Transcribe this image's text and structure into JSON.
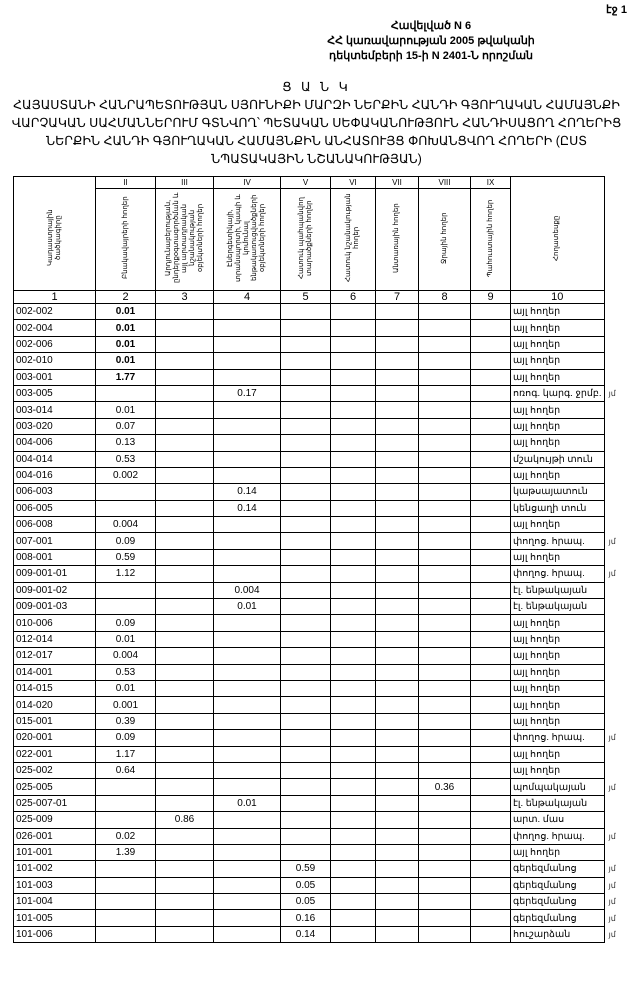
{
  "page_label": "էջ 1",
  "annex": [
    "Հավելված N 6",
    "ՀՀ կառավարության 2005 թվականի",
    "դեկտեմբերի 15-ի N 2401-Ն որոշման"
  ],
  "title_heading": "Ց Ա Ն Կ",
  "title_text": "ՀԱՅԱՍՏԱՆԻ ՀԱՆՐԱՊԵՏՈՒԹՅԱՆ ՍՅՈՒՆԻՔԻ ՄԱՐԶԻ ՆԵՐՔԻՆ ՀԱՆԴԻ ԳՅՈՒՂԱԿԱՆ ՀԱՄԱՅՆՔԻ ՎԱՐՉԱԿԱՆ ՍԱՀՄԱՆՆԵՐՈՒՄ ԳՏՆՎՈՂ՝ ՊԵՏԱԿԱՆ ՍԵՓԱԿԱՆՈՒԹՅՈՒՆ ՀԱՆԴԻՍԱՑՈՂ ՀՈՂԵՐԻՑ ՆԵՐՔԻՆ ՀԱՆԴԻ ԳՅՈՒՂԱԿԱՆ ՀԱՄԱՅՆՔԻՆ ԱՆՀԱՏՈՒՅՑ ՓՈԽԱՆՑՎՈՂ ՀՈՂԵՐԻ (ԸՍՏ ՆՊԱՏԱԿԱՅԻՆ ՆՇԱՆԱԿՈՒԹՅԱՆ)",
  "table": {
    "roman": [
      "",
      "II",
      "III",
      "IV",
      "V",
      "VI",
      "VII",
      "VIII",
      "IX",
      ""
    ],
    "headers": [
      "Կադաստրային ծածկագիրը",
      "Բնակավայրերի հողեր",
      "Արդյունաբերության, ընդերքօգտագործման և այլ արտադրական նշանակության օբյեկտների հողեր",
      "Էներգետիկայի, տրանսպորտի, կապի և կոմունալ ենթակառուցվածքների օբյեկտների հողեր",
      "Հատուկ պահպանվող տարածքների հողեր",
      "Հատուկ նշանակության հողեր",
      "Անտառային հողեր",
      "Ջրային հողեր",
      "Պահուստային հողեր",
      "Հողատեսքը"
    ],
    "index": [
      "1",
      "2",
      "3",
      "4",
      "5",
      "6",
      "7",
      "8",
      "9",
      "10"
    ],
    "rows": [
      [
        "002-002",
        "0.01",
        "",
        "",
        "",
        "",
        "",
        "",
        "",
        "այլ հողեր",
        ""
      ],
      [
        "002-004",
        "0.01",
        "",
        "",
        "",
        "",
        "",
        "",
        "",
        "այլ հողեր",
        ""
      ],
      [
        "002-006",
        "0.01",
        "",
        "",
        "",
        "",
        "",
        "",
        "",
        "այլ հողեր",
        ""
      ],
      [
        "002-010",
        "0.01",
        "",
        "",
        "",
        "",
        "",
        "",
        "",
        "այլ հողեր",
        ""
      ],
      [
        "003-001",
        "1.77",
        "",
        "",
        "",
        "",
        "",
        "",
        "",
        "այլ հողեր",
        ""
      ],
      [
        "003-005",
        "",
        "",
        "0.17",
        "",
        "",
        "",
        "",
        "",
        "ոռոգ. կարգ. ջրմբ.",
        "յմ"
      ],
      [
        "003-014",
        "0.01",
        "",
        "",
        "",
        "",
        "",
        "",
        "",
        "այլ հողեր",
        ""
      ],
      [
        "003-020",
        "0.07",
        "",
        "",
        "",
        "",
        "",
        "",
        "",
        "այլ հողեր",
        ""
      ],
      [
        "004-006",
        "0.13",
        "",
        "",
        "",
        "",
        "",
        "",
        "",
        "այլ հողեր",
        ""
      ],
      [
        "004-014",
        "0.53",
        "",
        "",
        "",
        "",
        "",
        "",
        "",
        "մշակույթի տուն",
        ""
      ],
      [
        "004-016",
        "0.002",
        "",
        "",
        "",
        "",
        "",
        "",
        "",
        "այլ հողեր",
        ""
      ],
      [
        "006-003",
        "",
        "",
        "0.14",
        "",
        "",
        "",
        "",
        "",
        "կաթսայատուն",
        ""
      ],
      [
        "006-005",
        "",
        "",
        "0.14",
        "",
        "",
        "",
        "",
        "",
        "կենցաղի տուն",
        ""
      ],
      [
        "006-008",
        "0.004",
        "",
        "",
        "",
        "",
        "",
        "",
        "",
        "այլ հողեր",
        ""
      ],
      [
        "007-001",
        "0.09",
        "",
        "",
        "",
        "",
        "",
        "",
        "",
        "փողոց. հրապ.",
        "յմ"
      ],
      [
        "008-001",
        "0.59",
        "",
        "",
        "",
        "",
        "",
        "",
        "",
        "այլ հողեր",
        ""
      ],
      [
        "009-001-01",
        "1.12",
        "",
        "",
        "",
        "",
        "",
        "",
        "",
        "փողոց. հրապ.",
        "յմ"
      ],
      [
        "009-001-02",
        "",
        "",
        "0.004",
        "",
        "",
        "",
        "",
        "",
        "էլ. ենթակայան",
        ""
      ],
      [
        "009-001-03",
        "",
        "",
        "0.01",
        "",
        "",
        "",
        "",
        "",
        "էլ. ենթակայան",
        ""
      ],
      [
        "010-006",
        "0.09",
        "",
        "",
        "",
        "",
        "",
        "",
        "",
        "այլ հողեր",
        ""
      ],
      [
        "012-014",
        "0.01",
        "",
        "",
        "",
        "",
        "",
        "",
        "",
        "այլ հողեր",
        ""
      ],
      [
        "012-017",
        "0.004",
        "",
        "",
        "",
        "",
        "",
        "",
        "",
        "այլ հողեր",
        ""
      ],
      [
        "014-001",
        "0.53",
        "",
        "",
        "",
        "",
        "",
        "",
        "",
        "այլ հողեր",
        ""
      ],
      [
        "014-015",
        "0.01",
        "",
        "",
        "",
        "",
        "",
        "",
        "",
        "այլ հողեր",
        ""
      ],
      [
        "014-020",
        "0.001",
        "",
        "",
        "",
        "",
        "",
        "",
        "",
        "այլ հողեր",
        ""
      ],
      [
        "015-001",
        "0.39",
        "",
        "",
        "",
        "",
        "",
        "",
        "",
        "այլ հողեր",
        ""
      ],
      [
        "020-001",
        "0.09",
        "",
        "",
        "",
        "",
        "",
        "",
        "",
        "փողոց. հրապ.",
        "յմ"
      ],
      [
        "022-001",
        "1.17",
        "",
        "",
        "",
        "",
        "",
        "",
        "",
        "այլ հողեր",
        ""
      ],
      [
        "025-002",
        "0.64",
        "",
        "",
        "",
        "",
        "",
        "",
        "",
        "այլ հողեր",
        ""
      ],
      [
        "025-005",
        "",
        "",
        "",
        "",
        "",
        "",
        "0.36",
        "",
        "պոմպակայան",
        "յմ"
      ],
      [
        "025-007-01",
        "",
        "",
        "0.01",
        "",
        "",
        "",
        "",
        "",
        "էլ. ենթակայան",
        ""
      ],
      [
        "025-009",
        "",
        "0.86",
        "",
        "",
        "",
        "",
        "",
        "",
        "արտ. մաս",
        ""
      ],
      [
        "026-001",
        "0.02",
        "",
        "",
        "",
        "",
        "",
        "",
        "",
        "փողոց. հրապ.",
        "յմ"
      ],
      [
        "101-001",
        "1.39",
        "",
        "",
        "",
        "",
        "",
        "",
        "",
        "այլ հողեր",
        ""
      ],
      [
        "101-002",
        "",
        "",
        "",
        "0.59",
        "",
        "",
        "",
        "",
        "գերեզմանոց",
        "յմ"
      ],
      [
        "101-003",
        "",
        "",
        "",
        "0.05",
        "",
        "",
        "",
        "",
        "գերեզմանոց",
        "յմ"
      ],
      [
        "101-004",
        "",
        "",
        "",
        "0.05",
        "",
        "",
        "",
        "",
        "գերեզմանոց",
        "յմ"
      ],
      [
        "101-005",
        "",
        "",
        "",
        "0.16",
        "",
        "",
        "",
        "",
        "գերեզմանոց",
        "յմ"
      ],
      [
        "101-006",
        "",
        "",
        "",
        "0.14",
        "",
        "",
        "",
        "",
        "հուշարձան",
        "յմ"
      ]
    ],
    "bold_rows_col2": 5
  }
}
